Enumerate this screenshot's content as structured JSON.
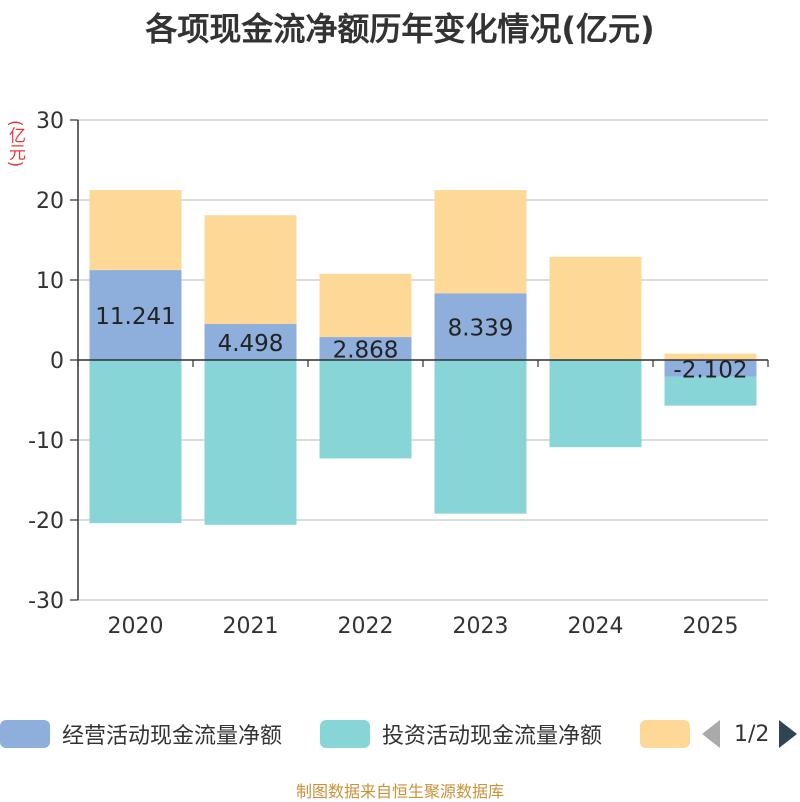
{
  "chart_data": {
    "type": "bar",
    "stacked": true,
    "title": "各项现金流净额历年变化情况(亿元)",
    "ylabel": "(亿元)",
    "xlabel": "",
    "ylim": [
      -30,
      30
    ],
    "yticks": [
      30,
      20,
      10,
      0,
      -10,
      -20,
      -30
    ],
    "grid": true,
    "categories": [
      "2020",
      "2021",
      "2022",
      "2023",
      "2024",
      "2025"
    ],
    "series": [
      {
        "name": "经营活动现金流量净额",
        "color": "#8eaedb",
        "values": [
          11.241,
          4.498,
          2.868,
          8.339,
          0.1,
          -2.102
        ],
        "labels": [
          "11.241",
          "4.498",
          "2.868",
          "8.339",
          "",
          "-2.102"
        ]
      },
      {
        "name": "投资活动现金流量净额",
        "color": "#88d5d8",
        "values": [
          -20.4,
          -20.6,
          -12.3,
          -19.2,
          -10.9,
          -3.6
        ]
      },
      {
        "name": "",
        "color": "#fdd897",
        "values": [
          10.0,
          13.6,
          7.9,
          12.9,
          12.8,
          0.8
        ]
      }
    ]
  },
  "legend": {
    "items": [
      {
        "label": "经营活动现金流量净额",
        "color": "#8eaedb"
      },
      {
        "label": "投资活动现金流量净额",
        "color": "#88d5d8"
      },
      {
        "label": "",
        "color": "#fdd897"
      }
    ],
    "page": "1/2"
  },
  "footer": "制图数据来自恒生聚源数据库"
}
